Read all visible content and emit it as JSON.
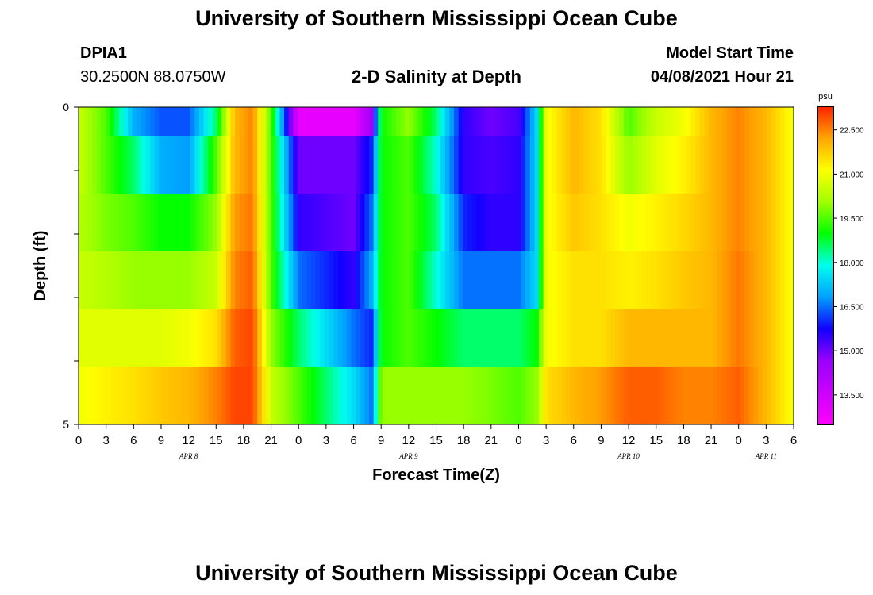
{
  "header": {
    "title": "University of Southern Mississippi Ocean Cube",
    "footer_title": "University of Southern Mississippi Ocean Cube",
    "station_id": "DPIA1",
    "station_coords": "30.2500N  88.0750W",
    "model_start_label": "Model Start Time",
    "model_start_value": "04/08/2021 Hour 21"
  },
  "chart_data": {
    "type": "heatmap",
    "title": "2-D Salinity at Depth",
    "xlabel": "Forecast Time(Z)",
    "ylabel": "Depth (ft)",
    "y_ticks": [
      "0",
      "5"
    ],
    "ylim": [
      0,
      5
    ],
    "x_tick_labels": [
      "0",
      "3",
      "6",
      "9",
      "12",
      "15",
      "18",
      "21",
      "0",
      "3",
      "6",
      "9",
      "12",
      "15",
      "18",
      "21",
      "0",
      "3",
      "6",
      "9",
      "12",
      "15",
      "18",
      "21",
      "0",
      "3",
      "6"
    ],
    "date_labels": [
      {
        "label": "APR 8",
        "tick_index": 4
      },
      {
        "label": "APR 9",
        "tick_index": 12
      },
      {
        "label": "APR 10",
        "tick_index": 20
      },
      {
        "label": "APR 11",
        "tick_index": 25
      }
    ],
    "colorbar": {
      "unit": "psu",
      "ticks": [
        "22.500",
        "21.000",
        "19.500",
        "18.000",
        "16.500",
        "15.000",
        "13.500"
      ],
      "tick_values": [
        22.5,
        21.0,
        19.5,
        18.0,
        16.5,
        15.0,
        13.5
      ],
      "range": [
        12.5,
        23.3
      ],
      "colors": [
        "#ff00ff",
        "#cc00ff",
        "#9a00ff",
        "#1100ff",
        "#00a0ff",
        "#00ffee",
        "#00ff00",
        "#a0ff00",
        "#ffff00",
        "#ffa500",
        "#ff2000"
      ]
    },
    "time_hours": [
      0,
      3,
      6,
      9,
      12,
      15,
      17,
      19,
      21,
      24,
      30,
      32,
      33,
      36,
      39,
      42,
      45,
      48,
      50,
      51,
      54,
      57,
      60,
      63,
      66,
      69,
      72,
      75,
      78
    ],
    "salinity": [
      [
        20.5,
        19.5,
        17.0,
        16.3,
        16.3,
        18.5,
        22.0,
        22.5,
        19.5,
        13.0,
        13.0,
        14.5,
        19.0,
        20.0,
        18.5,
        15.5,
        15.0,
        15.3,
        17.5,
        21.0,
        22.0,
        21.5,
        19.5,
        20.5,
        21.0,
        22.0,
        22.5,
        22.0,
        21.0
      ],
      [
        20.5,
        19.5,
        18.5,
        17.0,
        16.8,
        19.5,
        22.0,
        22.5,
        19.5,
        15.0,
        15.0,
        16.0,
        19.0,
        19.5,
        18.0,
        15.5,
        15.3,
        15.5,
        17.5,
        21.0,
        22.0,
        21.5,
        20.0,
        20.8,
        21.3,
        22.0,
        22.5,
        22.0,
        21.0
      ],
      [
        20.3,
        19.8,
        19.5,
        19.0,
        19.0,
        20.0,
        22.3,
        22.6,
        19.5,
        15.5,
        15.0,
        16.5,
        19.0,
        19.5,
        18.5,
        16.0,
        15.5,
        15.5,
        17.5,
        21.0,
        21.8,
        21.5,
        21.0,
        21.3,
        21.6,
        22.0,
        22.5,
        22.0,
        21.0
      ],
      [
        20.5,
        20.3,
        20.0,
        20.0,
        20.0,
        20.5,
        22.5,
        22.8,
        19.5,
        16.5,
        15.5,
        17.0,
        19.0,
        19.5,
        18.0,
        16.5,
        16.5,
        16.5,
        17.5,
        21.0,
        21.5,
        21.5,
        21.3,
        21.5,
        21.8,
        22.0,
        22.6,
        22.0,
        21.0
      ],
      [
        20.8,
        20.8,
        20.8,
        20.8,
        21.0,
        21.5,
        22.8,
        23.0,
        20.0,
        18.5,
        16.5,
        16.0,
        19.0,
        19.5,
        19.0,
        18.5,
        18.5,
        18.5,
        19.0,
        21.0,
        21.5,
        21.5,
        22.0,
        22.0,
        22.0,
        22.0,
        22.6,
        22.0,
        21.0
      ],
      [
        21.0,
        21.3,
        21.5,
        21.8,
        22.0,
        22.5,
        23.0,
        23.0,
        20.5,
        19.5,
        17.5,
        16.5,
        20.0,
        20.0,
        20.0,
        20.0,
        19.8,
        19.5,
        20.0,
        21.5,
        22.0,
        22.3,
        22.8,
        22.8,
        22.5,
        22.5,
        22.8,
        22.0,
        21.0
      ]
    ]
  }
}
